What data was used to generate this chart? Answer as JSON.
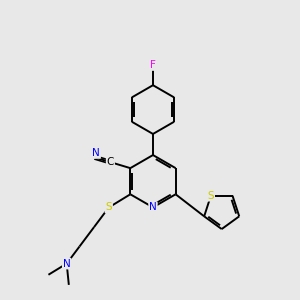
{
  "bg_color": "#e8e8e8",
  "bond_color": "#000000",
  "atom_colors": {
    "N": "#0000ff",
    "S": "#cccc00",
    "F": "#ff00ff",
    "C": "#000000"
  },
  "figsize": [
    3.0,
    3.0
  ],
  "dpi": 100,
  "lw": 1.4,
  "fontsize": 7.5
}
